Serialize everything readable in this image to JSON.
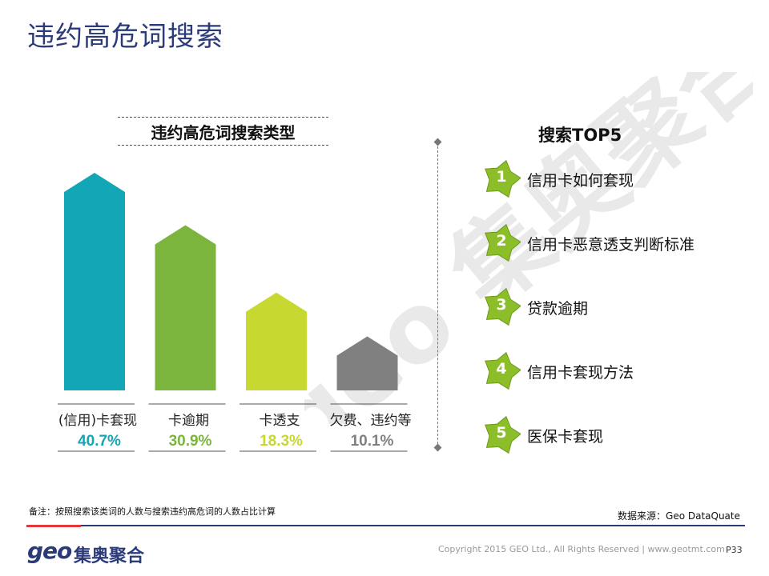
{
  "page": {
    "title": "违约高危词搜索"
  },
  "chart_data": {
    "type": "bar",
    "title": "违约高危词搜索类型",
    "categories": [
      "(信用)卡套现",
      "卡逾期",
      "卡透支",
      "欠费、违约等"
    ],
    "values": [
      40.7,
      30.9,
      18.3,
      10.1
    ],
    "value_labels": [
      "40.7%",
      "30.9%",
      "18.3%",
      "10.1%"
    ],
    "colors": [
      "#13a6b6",
      "#7bb53d",
      "#c7d830",
      "#808080"
    ],
    "xlabel": "",
    "ylabel": "",
    "ylim": [
      0,
      40.7
    ],
    "grid": false,
    "legend": "none"
  },
  "top5": {
    "title": "搜索TOP5",
    "badge_color": "#8cbe2a",
    "items": [
      {
        "rank": "1",
        "label": "信用卡如何套现"
      },
      {
        "rank": "2",
        "label": "信用卡恶意透支判断标准"
      },
      {
        "rank": "3",
        "label": "贷款逾期"
      },
      {
        "rank": "4",
        "label": "信用卡套现方法"
      },
      {
        "rank": "5",
        "label": "医保卡套现"
      }
    ]
  },
  "watermark": {
    "text": "geo 集奥聚合"
  },
  "footer": {
    "note": "备注：按照搜索该类词的人数与搜索违约高危词的人数占比计算",
    "source": "数据来源：Geo DataQuate",
    "logo_latin": "geo",
    "logo_cn": "集奥聚合",
    "copyright": "Copyright 2015 GEO Ltd., All Rights Reserved  |  www.geotmt.com",
    "page_number": "P33"
  }
}
